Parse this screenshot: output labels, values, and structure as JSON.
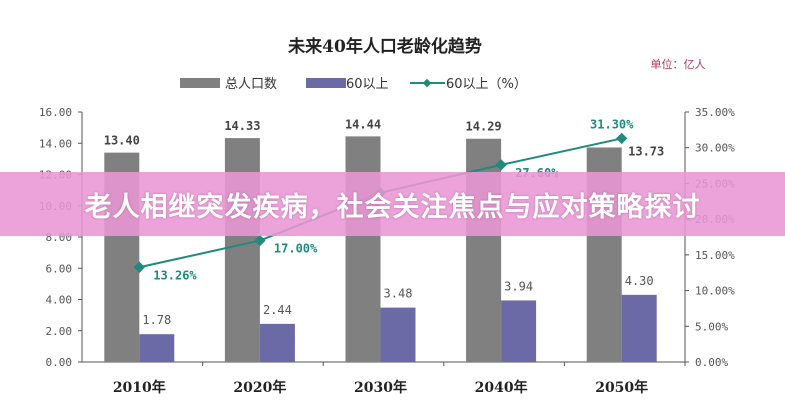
{
  "banner": {
    "headline": "老人相继突发疾病，社会关注焦点与应对策略探讨"
  },
  "colors": {
    "total": "#808080",
    "over60": "#6b6aa6",
    "pct_line": "#1f8a7e",
    "banner": "#e896d4",
    "unit": "#b03a5a"
  },
  "chart_data": {
    "type": "bar",
    "title": "未来40年人口老龄化趋势",
    "unit_label": "单位：亿人",
    "categories": [
      "2010年",
      "2020年",
      "2030年",
      "2040年",
      "2050年"
    ],
    "series": [
      {
        "name": "总人口数",
        "type": "bar",
        "axis": "left",
        "values": [
          13.4,
          14.33,
          14.44,
          14.29,
          13.73
        ],
        "labels": [
          "13.40",
          "14.33",
          "14.44",
          "14.29",
          "13.73"
        ]
      },
      {
        "name": "60以上",
        "type": "bar",
        "axis": "left",
        "values": [
          1.78,
          2.44,
          3.48,
          3.94,
          4.3
        ],
        "labels": [
          "1.78",
          "2.44",
          "3.48",
          "3.94",
          "4.30"
        ]
      },
      {
        "name": "60以上（%）",
        "type": "line",
        "axis": "right",
        "values": [
          13.26,
          17.0,
          23.7,
          27.6,
          31.3
        ],
        "labels": [
          "13.26%",
          "17.00%",
          "",
          "27.60%",
          "31.30%"
        ]
      }
    ],
    "left_axis": {
      "ylim": [
        0,
        16
      ],
      "ticks": [
        "0.00",
        "2.00",
        "4.00",
        "6.00",
        "8.00",
        "10.00",
        "12.00",
        "14.00",
        "16.00"
      ]
    },
    "right_axis": {
      "ylim": [
        0,
        35
      ],
      "ticks": [
        "0.00%",
        "5.00%",
        "10.00%",
        "15.00%",
        "20.00%",
        "25.00%",
        "30.00%",
        "35.00%"
      ]
    },
    "grid": false,
    "legend": "top"
  }
}
